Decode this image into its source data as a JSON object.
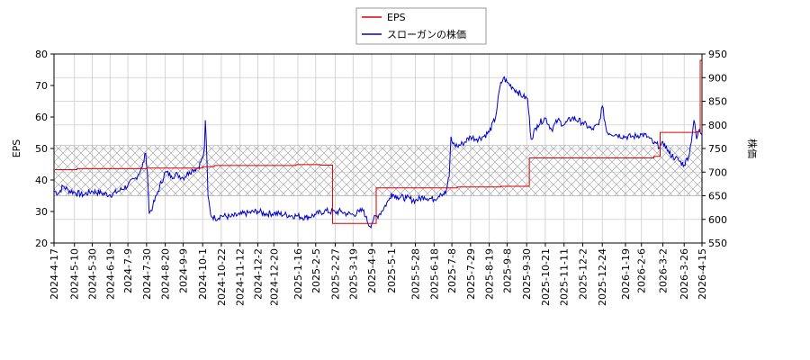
{
  "chart_data": {
    "type": "line",
    "legend": {
      "placement": "top-center",
      "entries": [
        {
          "label": "EPS",
          "color": "#dd0000"
        },
        {
          "label": "スローガンの株価",
          "color": "#0000cc"
        }
      ]
    },
    "ylabel_left": "EPS",
    "ylabel_right": "株価",
    "ylim_left": [
      20,
      80
    ],
    "ylim_right": [
      550,
      950
    ],
    "yticks_left": [
      "20",
      "30",
      "40",
      "50",
      "60",
      "70",
      "80"
    ],
    "yticks_right": [
      "550",
      "600",
      "650",
      "700",
      "750",
      "800",
      "850",
      "900",
      "950"
    ],
    "grid": true,
    "hatched_band_left": [
      35,
      51
    ],
    "xlim": [
      "2024-04-17",
      "2026-04-15"
    ],
    "xticks": [
      "2024-4-17",
      "2024-5-10",
      "2024-5-30",
      "2024-6-19",
      "2024-7-9",
      "2024-7-30",
      "2024-8-20",
      "2024-9-9",
      "2024-10-1",
      "2024-10-22",
      "2024-11-12",
      "2024-12-2",
      "2024-12-20",
      "2025-1-16",
      "2025-2-5",
      "2025-2-27",
      "2025-3-19",
      "2025-4-9",
      "2025-5-1",
      "2025-5-28",
      "2025-6-18",
      "2025-7-8",
      "2025-7-29",
      "2025-8-19",
      "2025-9-8",
      "2025-9-30",
      "2025-10-21",
      "2025-11-11",
      "2025-12-2",
      "2025-12-24",
      "2026-1-19",
      "2026-2-6",
      "2026-3-2",
      "2026-3-26",
      "2026-4-15"
    ],
    "eps_series": {
      "name": "EPS",
      "axis": "left",
      "step": true,
      "points": [
        [
          "2024-04-18",
          43.3
        ],
        [
          "2024-05-13",
          43.6
        ],
        [
          "2024-07-30",
          43.8
        ],
        [
          "2024-10-01",
          44.2
        ],
        [
          "2024-10-14",
          44.6
        ],
        [
          "2025-01-14",
          44.9
        ],
        [
          "2025-02-10",
          44.7
        ],
        [
          "2025-02-24",
          26.2
        ],
        [
          "2025-04-14",
          37.5
        ],
        [
          "2025-07-14",
          37.8
        ],
        [
          "2025-09-01",
          38.0
        ],
        [
          "2025-10-03",
          47.0
        ],
        [
          "2026-02-20",
          47.5
        ],
        [
          "2026-02-27",
          55.1
        ],
        [
          "2026-04-09",
          55.3
        ],
        [
          "2026-04-13",
          78.0
        ],
        [
          "2026-04-15",
          78.0
        ]
      ]
    },
    "price_series": {
      "name": "スローガンの株価",
      "axis": "right",
      "points": [
        [
          "2024-04-17",
          660
        ],
        [
          "2024-04-22",
          655
        ],
        [
          "2024-04-27",
          670
        ],
        [
          "2024-05-03",
          662
        ],
        [
          "2024-05-10",
          657
        ],
        [
          "2024-05-20",
          652
        ],
        [
          "2024-05-30",
          660
        ],
        [
          "2024-06-10",
          655
        ],
        [
          "2024-06-19",
          652
        ],
        [
          "2024-06-29",
          660
        ],
        [
          "2024-07-09",
          672
        ],
        [
          "2024-07-18",
          688
        ],
        [
          "2024-07-25",
          710
        ],
        [
          "2024-07-29",
          740
        ],
        [
          "2024-07-31",
          700
        ],
        [
          "2024-08-02",
          612
        ],
        [
          "2024-08-06",
          628
        ],
        [
          "2024-08-12",
          660
        ],
        [
          "2024-08-20",
          700
        ],
        [
          "2024-08-27",
          692
        ],
        [
          "2024-09-03",
          695
        ],
        [
          "2024-09-09",
          688
        ],
        [
          "2024-09-16",
          700
        ],
        [
          "2024-09-20",
          705
        ],
        [
          "2024-09-26",
          710
        ],
        [
          "2024-10-01",
          730
        ],
        [
          "2024-10-03",
          750
        ],
        [
          "2024-10-04",
          810
        ],
        [
          "2024-10-05",
          770
        ],
        [
          "2024-10-07",
          650
        ],
        [
          "2024-10-10",
          610
        ],
        [
          "2024-10-15",
          602
        ],
        [
          "2024-10-22",
          608
        ],
        [
          "2024-11-01",
          605
        ],
        [
          "2024-11-12",
          610
        ],
        [
          "2024-11-22",
          614
        ],
        [
          "2024-12-02",
          617
        ],
        [
          "2024-12-10",
          612
        ],
        [
          "2024-12-20",
          613
        ],
        [
          "2025-01-01",
          610
        ],
        [
          "2025-01-16",
          607
        ],
        [
          "2025-01-25",
          604
        ],
        [
          "2025-02-05",
          610
        ],
        [
          "2025-02-15",
          618
        ],
        [
          "2025-02-27",
          615
        ],
        [
          "2025-03-05",
          617
        ],
        [
          "2025-03-12",
          612
        ],
        [
          "2025-03-19",
          610
        ],
        [
          "2025-03-26",
          616
        ],
        [
          "2025-03-31",
          620
        ],
        [
          "2025-04-02",
          605
        ],
        [
          "2025-04-07",
          585
        ],
        [
          "2025-04-11",
          600
        ],
        [
          "2025-04-18",
          612
        ],
        [
          "2025-04-28",
          640
        ],
        [
          "2025-05-01",
          655
        ],
        [
          "2025-05-08",
          648
        ],
        [
          "2025-05-18",
          645
        ],
        [
          "2025-05-28",
          640
        ],
        [
          "2025-06-07",
          648
        ],
        [
          "2025-06-18",
          642
        ],
        [
          "2025-06-25",
          655
        ],
        [
          "2025-07-01",
          655
        ],
        [
          "2025-07-05",
          690
        ],
        [
          "2025-07-07",
          775
        ],
        [
          "2025-07-09",
          760
        ],
        [
          "2025-07-14",
          755
        ],
        [
          "2025-07-20",
          760
        ],
        [
          "2025-07-29",
          775
        ],
        [
          "2025-08-05",
          770
        ],
        [
          "2025-08-12",
          775
        ],
        [
          "2025-08-19",
          785
        ],
        [
          "2025-08-26",
          815
        ],
        [
          "2025-08-31",
          880
        ],
        [
          "2025-09-04",
          900
        ],
        [
          "2025-09-08",
          890
        ],
        [
          "2025-09-14",
          880
        ],
        [
          "2025-09-20",
          870
        ],
        [
          "2025-09-26",
          860
        ],
        [
          "2025-10-01",
          855
        ],
        [
          "2025-10-05",
          770
        ],
        [
          "2025-10-12",
          800
        ],
        [
          "2025-10-21",
          815
        ],
        [
          "2025-10-28",
          790
        ],
        [
          "2025-11-04",
          810
        ],
        [
          "2025-11-11",
          800
        ],
        [
          "2025-11-20",
          815
        ],
        [
          "2025-12-02",
          805
        ],
        [
          "2025-12-12",
          790
        ],
        [
          "2025-12-20",
          800
        ],
        [
          "2025-12-24",
          840
        ],
        [
          "2025-12-29",
          785
        ],
        [
          "2026-01-08",
          780
        ],
        [
          "2026-01-19",
          775
        ],
        [
          "2026-01-28",
          775
        ],
        [
          "2026-02-06",
          780
        ],
        [
          "2026-02-13",
          775
        ],
        [
          "2026-02-20",
          760
        ],
        [
          "2026-02-27",
          755
        ],
        [
          "2026-03-04",
          760
        ],
        [
          "2026-03-09",
          740
        ],
        [
          "2026-03-16",
          730
        ],
        [
          "2026-03-26",
          715
        ],
        [
          "2026-04-01",
          740
        ],
        [
          "2026-04-06",
          810
        ],
        [
          "2026-04-09",
          770
        ],
        [
          "2026-04-12",
          790
        ],
        [
          "2026-04-15",
          780
        ]
      ]
    }
  }
}
